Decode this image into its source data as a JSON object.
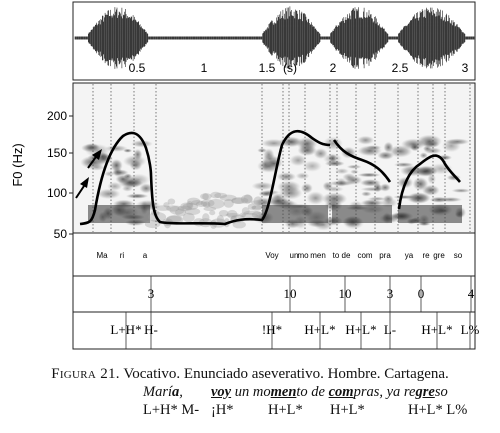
{
  "figure": {
    "time_axis": {
      "unit_label": "(s)",
      "ticks": [
        "0.5",
        "1",
        "1.5",
        "2",
        "2.5",
        "3"
      ]
    },
    "f0_axis": {
      "label": "F0 (Hz)",
      "ticks": [
        "200",
        "150",
        "100",
        "50"
      ]
    },
    "syllables": [
      "Ma",
      "ri",
      "a",
      "Voy",
      "un",
      "mo",
      "men",
      "to",
      "de",
      "com",
      "pra",
      "ya",
      "re",
      "gre",
      "so"
    ],
    "break_indices": [
      "3",
      "10",
      "10",
      "3",
      "0",
      "4"
    ],
    "tones": [
      "L+H*",
      "H-",
      "!H*",
      "H+L*",
      "H+L*",
      "L-",
      "H+L*",
      "L%"
    ]
  },
  "caption": {
    "figure_label": "Figura 21.",
    "title": "Vocativo. Enunciado aseverativo. Hombre. Cartagena.",
    "gloss_words": [
      "Marí",
      "a",
      ",",
      "voy",
      "un mo",
      "men",
      "to de",
      "com",
      "pras, ya re",
      "gre",
      "so"
    ],
    "tone_labels": [
      "L+H* M-",
      "¡H*",
      "H+L*",
      "H+L*",
      "H+L* L%"
    ]
  }
}
